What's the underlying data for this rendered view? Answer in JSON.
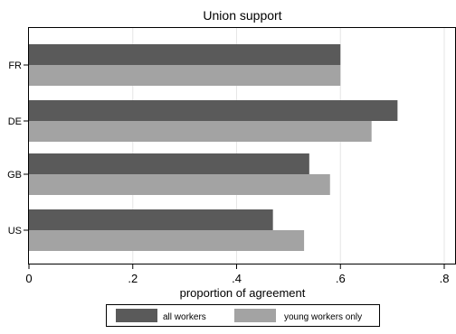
{
  "chart_data": {
    "type": "bar",
    "orientation": "horizontal",
    "title": "Union support",
    "xlabel": "proportion of agreement",
    "ylabel": "",
    "categories": [
      "FR",
      "DE",
      "GB",
      "US"
    ],
    "xlim": [
      0,
      0.8
    ],
    "x_ticks": [
      0,
      0.2,
      0.4,
      0.6,
      0.8
    ],
    "x_tick_labels": [
      "0",
      ".2",
      ".4",
      ".6",
      ".8"
    ],
    "grid": true,
    "legend_position": "bottom",
    "series": [
      {
        "name": "all workers",
        "color": "#5a5a5a",
        "values": [
          0.6,
          0.71,
          0.54,
          0.47
        ]
      },
      {
        "name": "young workers only",
        "color": "#a3a3a3",
        "values": [
          0.6,
          0.66,
          0.58,
          0.53
        ]
      }
    ]
  }
}
